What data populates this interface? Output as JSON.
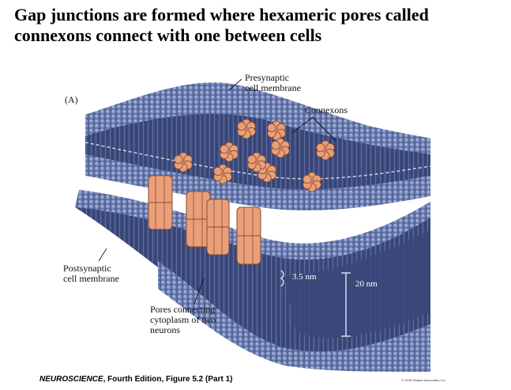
{
  "title": "Gap junctions are formed where hexameric pores called connexons connect with one between cells",
  "panel_letter": "(A)",
  "labels": {
    "presynaptic": [
      "Presynaptic",
      "cell membrane"
    ],
    "connexons": "Connexons",
    "postsynaptic": [
      "Postsynaptic",
      "cell membrane"
    ],
    "pores": [
      "Pores connecting",
      "cytoplasm of two",
      "neurons"
    ],
    "gap_width": "3.5 nm",
    "total_width": "20 nm"
  },
  "credit": {
    "italic": "NEUROSCIENCE",
    "rest": ", Fourth Edition, Figure 5.2 (Part 1)"
  },
  "copyright": "© 2008 Sinauer Associates, Inc.",
  "colors": {
    "membrane_face": "#5a6a9c",
    "membrane_dark": "#2f3a66",
    "membrane_bead": "#7b8cc0",
    "connexon": "#e9a07a",
    "connexon_edge": "#8a4a2a"
  }
}
